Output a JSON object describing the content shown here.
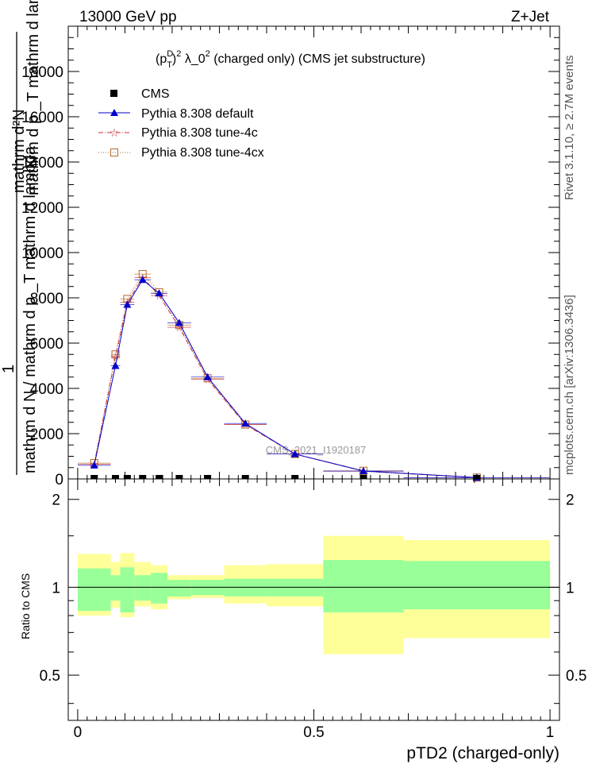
{
  "header": {
    "energy_label": "13000 GeV pp",
    "process_label": "Z+Jet"
  },
  "side_labels": {
    "rivet": "Rivet 3.1.10, ≥ 2.7M events",
    "mcplots": "mcplots.cern.ch [arXiv:1306.3436]"
  },
  "watermark": "CMS_2021_I1920187",
  "colors": {
    "cms": "#000000",
    "default": "#0000cc",
    "tune4c": "#cc3333",
    "tune4cx": "#b36b2e",
    "band_inner": "#99ff99",
    "band_outer": "#ffff99"
  },
  "chart_data": [
    {
      "type": "line",
      "title": "(p_T^D)^2 λ_0^2 (charged only) (CMS jet substructure)",
      "title_parts": {
        "a": "(p",
        "sup1": "D",
        "sub1": "T",
        "b": ")",
        "sup2": "2",
        "c": " λ_0",
        "sup3": "2",
        "d": " (charged only) (CMS jet substructure)"
      },
      "ylabel": "mathrm d N / mathrm d p _T mathrm d lambda",
      "ylabel_parts": {
        "num_top": "mathrm d²N",
        "num_mid": "mathrm d p _T mathrm d lambda",
        "den": "mathrm d N / mathrm d p _T mathrm d lambda",
        "one": "1"
      },
      "xlim": [
        -0.02,
        1.02
      ],
      "ylim": [
        0,
        20000
      ],
      "yticks": [
        0,
        2000,
        4000,
        6000,
        8000,
        10000,
        12000,
        14000,
        16000,
        18000
      ],
      "ytick_labels": [
        "0",
        "2000",
        "4000",
        "6000",
        "8000",
        "10000",
        "12000",
        "14000",
        "16000",
        "18000"
      ],
      "x_bin_edges": [
        0.0,
        0.07,
        0.09,
        0.12,
        0.155,
        0.19,
        0.24,
        0.31,
        0.4,
        0.52,
        0.69,
        1.0
      ],
      "series": [
        {
          "name": "CMS",
          "marker": "square",
          "x": [
            0.035,
            0.08,
            0.105,
            0.1375,
            0.1725,
            0.215,
            0.275,
            0.355,
            0.46,
            0.605,
            0.845
          ],
          "y": [
            0,
            0,
            0,
            0,
            0,
            0,
            0,
            0,
            0,
            0,
            0
          ]
        },
        {
          "name": "Pythia 8.308 default",
          "marker": "triangle",
          "x": [
            0.035,
            0.08,
            0.105,
            0.1375,
            0.1725,
            0.215,
            0.275,
            0.355,
            0.46,
            0.605,
            0.845
          ],
          "y": [
            600,
            5000,
            7700,
            8800,
            8200,
            6900,
            4500,
            2450,
            1100,
            350,
            60
          ]
        },
        {
          "name": "Pythia 8.308 tune-4c",
          "marker": "star",
          "x": [
            0.035,
            0.08,
            0.105,
            0.1375,
            0.1725,
            0.215,
            0.275,
            0.355,
            0.46,
            0.605,
            0.845
          ],
          "y": [
            650,
            5400,
            7800,
            8900,
            8100,
            6700,
            4400,
            2400,
            1100,
            340,
            60
          ]
        },
        {
          "name": "Pythia 8.308 tune-4cx",
          "marker": "open-square",
          "x": [
            0.035,
            0.08,
            0.105,
            0.1375,
            0.1725,
            0.215,
            0.275,
            0.355,
            0.46,
            0.605,
            0.845
          ],
          "y": [
            700,
            5500,
            7950,
            9050,
            8250,
            6800,
            4450,
            2400,
            1100,
            360,
            60
          ]
        }
      ]
    },
    {
      "type": "area",
      "ylabel": "Ratio to CMS",
      "xlabel": "pTD2 (charged-only)",
      "xlim": [
        -0.02,
        1.02
      ],
      "ylim": [
        0.35,
        2.35
      ],
      "yticks": [
        0.5,
        1,
        2
      ],
      "ytick_labels": [
        "0.5",
        "1",
        "2"
      ],
      "xticks": [
        0,
        0.5,
        1
      ],
      "xtick_labels": [
        "0",
        "0.5",
        "1"
      ],
      "x_bin_edges": [
        0.0,
        0.07,
        0.09,
        0.12,
        0.155,
        0.19,
        0.24,
        0.31,
        0.4,
        0.52,
        0.69,
        1.0
      ],
      "reference": 1,
      "band_inner": {
        "lo": [
          0.83,
          0.9,
          0.82,
          0.9,
          0.88,
          0.93,
          0.94,
          0.93,
          0.93,
          0.82,
          0.84
        ],
        "hi": [
          1.16,
          1.1,
          1.17,
          1.1,
          1.12,
          1.06,
          1.06,
          1.07,
          1.07,
          1.24,
          1.23
        ]
      },
      "band_outer": {
        "lo": [
          0.8,
          0.85,
          0.79,
          0.86,
          0.84,
          0.91,
          0.92,
          0.88,
          0.86,
          0.59,
          0.67
        ],
        "hi": [
          1.3,
          1.22,
          1.31,
          1.22,
          1.19,
          1.1,
          1.1,
          1.19,
          1.2,
          1.5,
          1.45
        ]
      }
    }
  ]
}
